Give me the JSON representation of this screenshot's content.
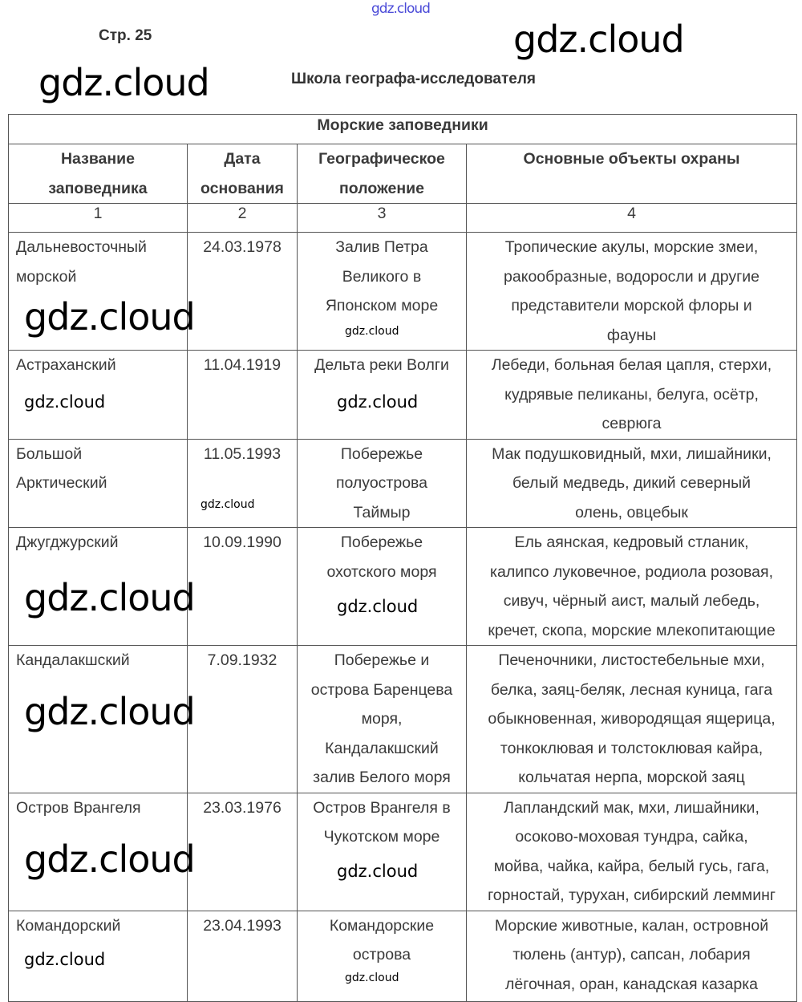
{
  "watermark": "gdz.cloud",
  "page_label": "Стр. 25",
  "section_title": "Школа географа-исследователя",
  "table": {
    "title": "Морские заповедники",
    "headers": [
      [
        "Название",
        "заповедника"
      ],
      [
        "Дата",
        "основания"
      ],
      [
        "Географическое",
        "положение"
      ],
      [
        "Основные объекты охраны"
      ]
    ],
    "column_numbers": [
      "1",
      "2",
      "3",
      "4"
    ],
    "rows": [
      {
        "name": [
          "Дальневосточный",
          "морской"
        ],
        "date": [
          "24.03.1978"
        ],
        "location": [
          "Залив Петра",
          "Великого в",
          "Японском море"
        ],
        "objects": [
          "Тропические акулы, морские змеи,",
          "ракообразные, водоросли и другие",
          "представители морской флоры и",
          "фауны"
        ]
      },
      {
        "name": [
          "Астраханский"
        ],
        "date": [
          "11.04.1919"
        ],
        "location": [
          "Дельта реки Волги"
        ],
        "objects": [
          "Лебеди, больная белая цапля, стерхи,",
          "кудрявые пеликаны, белуга, осётр,",
          "севрюга"
        ]
      },
      {
        "name": [
          "Большой",
          "Арктический"
        ],
        "date": [
          "11.05.1993"
        ],
        "location": [
          "Побережье",
          "полуострова",
          "Таймыр"
        ],
        "objects": [
          "Мак подушковидный, мхи, лишайники,",
          "белый медведь, дикий северный",
          "олень, овцебык"
        ]
      },
      {
        "name": [
          "Джугджурский"
        ],
        "date": [
          "10.09.1990"
        ],
        "location": [
          "Побережье",
          "охотского моря"
        ],
        "objects": [
          "Ель аянская, кедровый стланик,",
          "калипсо луковечное, родиола розовая,",
          "сивуч, чёрный аист, малый лебедь,",
          "кречет, скопа, морские млекопитающие"
        ]
      },
      {
        "name": [
          "Кандалакшский"
        ],
        "date": [
          "7.09.1932"
        ],
        "location": [
          "Побережье и",
          "острова Баренцева",
          "моря,",
          "Кандалакшский",
          "залив Белого моря"
        ],
        "objects": [
          "Печеночники, листостебельные мхи,",
          "белка, заяц-беляк, лесная куница, гага",
          "обыкновенная, живородящая ящерица,",
          "тонкоклювая и толстоклювая кайра,",
          "кольчатая нерпа, морской заяц"
        ]
      },
      {
        "name": [
          "Остров Врангеля"
        ],
        "date": [
          "23.03.1976"
        ],
        "location": [
          "Остров Врангеля в",
          "Чукотском море"
        ],
        "objects": [
          "Лапландский мак, мхи, лишайники,",
          "осоково-моховая тундра,  сайка,",
          "мойва, чайка, кайра, белый гусь, гага,",
          "горностай, турухан, сибирский лемминг"
        ]
      },
      {
        "name": [
          "Командорский"
        ],
        "date": [
          "23.04.1993"
        ],
        "location": [
          "Командорские",
          "острова"
        ],
        "objects": [
          "Морские животные, калан, островной",
          "тюлень (антур), сапсан, лобария",
          "лёгочная, оран, канадская казарка"
        ]
      }
    ]
  }
}
